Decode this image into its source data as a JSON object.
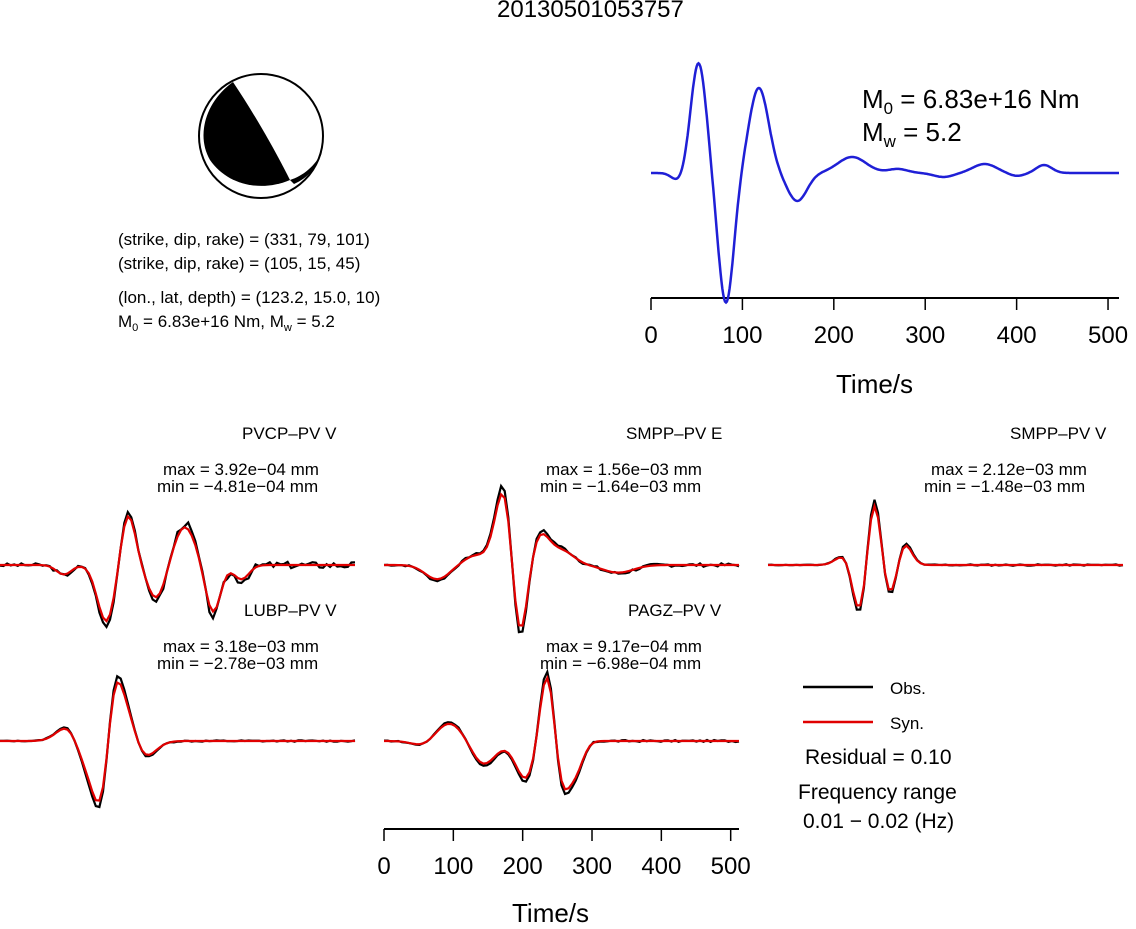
{
  "title": "20130501053757",
  "focal_mechanism": {
    "line1": "(strike, dip, rake) = (331, 79, 101)",
    "line2": "(strike, dip, rake) = (105, 15, 45)",
    "line3": "(lon., lat, depth) = (123.2, 15.0, 10)",
    "m0_text": "M",
    "m0_sub": "0",
    "m0_rest": " = 6.83e+16 Nm, M",
    "mw_sub": "w",
    "mw_rest": " = 5.2"
  },
  "stf": {
    "m0_label": "M",
    "m0_sub": "0",
    "m0_value": " = 6.83e+16 Nm",
    "mw_label": "M",
    "mw_sub": "w",
    "mw_value": " = 5.2",
    "xlabel": "Time/s",
    "xticks": [
      "0",
      "100",
      "200",
      "300",
      "400",
      "500"
    ],
    "color": "#1f1fd6"
  },
  "stations": [
    {
      "name": "PVCP–PV V",
      "max": "max = 3.92e−04 mm",
      "min": "min = −4.81e−04 mm"
    },
    {
      "name": "SMPP–PV E",
      "max": "max = 1.56e−03 mm",
      "min": "min = −1.64e−03 mm"
    },
    {
      "name": "SMPP–PV V",
      "max": "max = 2.12e−03 mm",
      "min": "min = −1.48e−03 mm"
    },
    {
      "name": "LUBP–PV V",
      "max": "max = 3.18e−03 mm",
      "min": "min = −2.78e−03 mm"
    },
    {
      "name": "PAGZ–PV V",
      "max": "max = 9.17e−04 mm",
      "min": "min = −6.98e−04 mm"
    }
  ],
  "legend": {
    "obs": "Obs.",
    "syn": "Syn.",
    "obs_color": "#000000",
    "syn_color": "#e00000"
  },
  "residual": "Residual = 0.10",
  "freq_label": "Frequency range",
  "freq_value": "0.01 − 0.02 (Hz)",
  "bottom_axis": {
    "xlabel": "Time/s",
    "xticks": [
      "0",
      "100",
      "200",
      "300",
      "400",
      "500"
    ]
  },
  "chart_data": {
    "type": "line",
    "title": "20130501053757",
    "xlabel": "Time/s",
    "xlim": [
      0,
      512
    ],
    "series": [
      {
        "name": "Obs.",
        "color": "#000000"
      },
      {
        "name": "Syn.",
        "color": "#e00000"
      }
    ]
  }
}
